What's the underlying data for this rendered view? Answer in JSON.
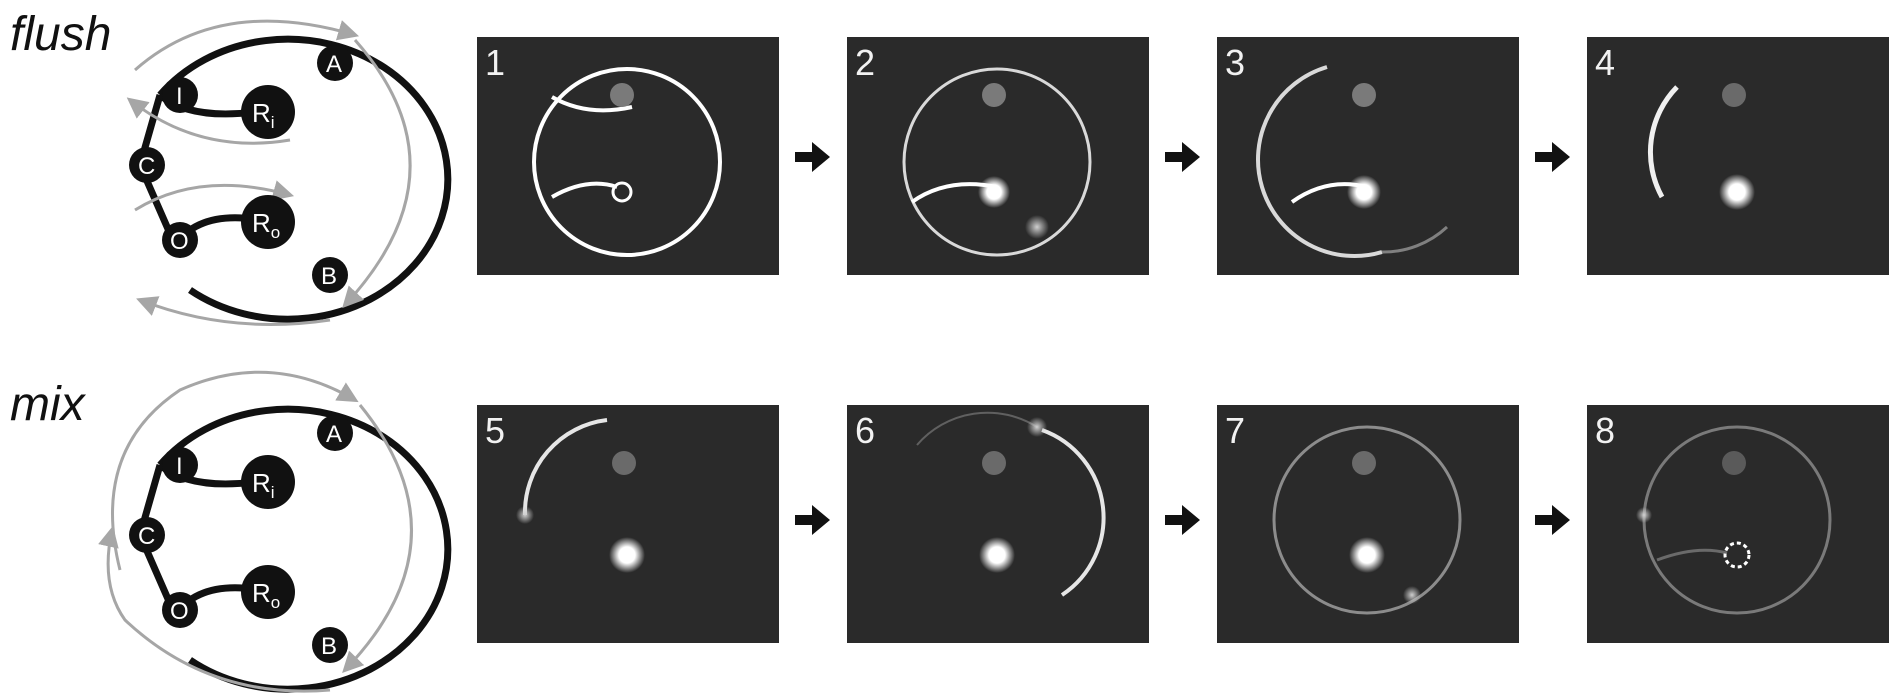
{
  "rows": [
    {
      "title": "flush",
      "node_labels": {
        "A": "A",
        "B": "B",
        "C": "C",
        "I": "I",
        "O": "O"
      },
      "reservoirs": {
        "input": {
          "main": "R",
          "sub": "i"
        },
        "output": {
          "main": "R",
          "sub": "o"
        }
      },
      "frames": [
        {
          "number": "1"
        },
        {
          "number": "2"
        },
        {
          "number": "3"
        },
        {
          "number": "4"
        }
      ]
    },
    {
      "title": "mix",
      "node_labels": {
        "A": "A",
        "B": "B",
        "C": "C",
        "I": "I",
        "O": "O"
      },
      "reservoirs": {
        "input": {
          "main": "R",
          "sub": "i"
        },
        "output": {
          "main": "R",
          "sub": "o"
        }
      },
      "frames": [
        {
          "number": "5"
        },
        {
          "number": "6"
        },
        {
          "number": "7"
        },
        {
          "number": "8"
        }
      ]
    }
  ],
  "colors": {
    "frame_background": "#2a2a2a",
    "ring": "#ffffff",
    "flow_arrow": "#a6a6a6",
    "ink": "#111111"
  },
  "icons": {
    "step_arrow": "right-arrow-icon"
  }
}
